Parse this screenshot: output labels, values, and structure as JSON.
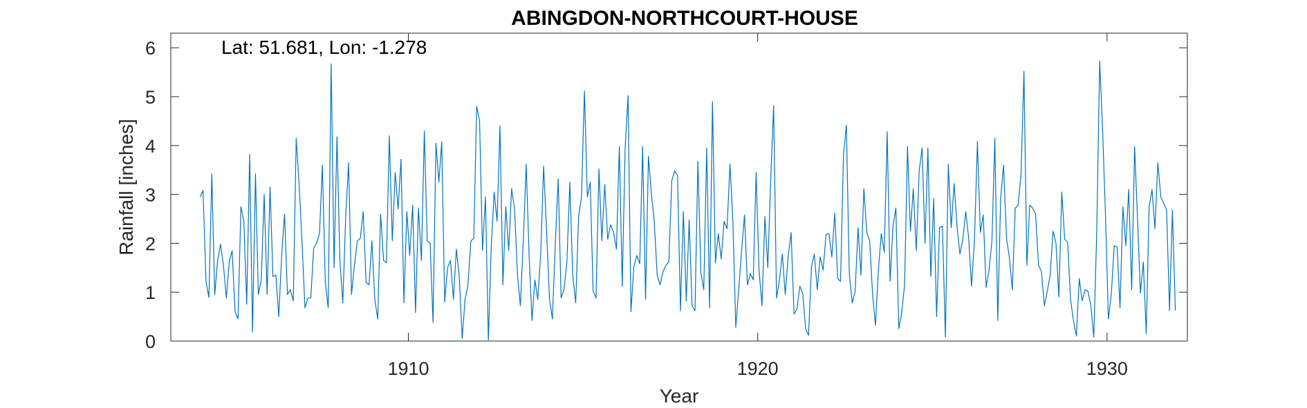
{
  "chart_data": {
    "type": "line",
    "title": "ABINGDON-NORTHCOURT-HOUSE",
    "xlabel": "Year",
    "ylabel": "Rainfall [inches]",
    "annotation": "Lat: 51.681, Lon: -1.278",
    "xlim": [
      1903.2,
      1932.3
    ],
    "ylim": [
      0,
      6.3
    ],
    "xticks": [
      1910,
      1920,
      1930
    ],
    "yticks": [
      0,
      1,
      2,
      3,
      4,
      5,
      6
    ],
    "grid": false,
    "line_color": "#0072BD",
    "series": [
      {
        "x_start": 1904.04,
        "x_step": 0.08333,
        "values": [
          2.95,
          3.08,
          1.22,
          0.89,
          3.42,
          0.95,
          1.65,
          1.98,
          1.55,
          0.88,
          1.62,
          1.85,
          0.6,
          0.45,
          2.75,
          2.45,
          0.75,
          3.82,
          0.18,
          3.42,
          0.95,
          1.25,
          3.0,
          0.95,
          3.15,
          1.32,
          1.35,
          0.5,
          1.75,
          2.6,
          0.95,
          1.05,
          0.82,
          4.15,
          3.2,
          2.0,
          0.68,
          0.88,
          0.88,
          1.9,
          2.0,
          2.2,
          3.6,
          1.2,
          0.68,
          5.67,
          1.5,
          4.18,
          1.65,
          0.78,
          2.55,
          3.65,
          0.95,
          1.55,
          2.05,
          2.1,
          2.65,
          1.2,
          1.15,
          2.05,
          0.85,
          0.45,
          2.6,
          1.65,
          1.6,
          4.2,
          2.05,
          3.45,
          2.7,
          3.72,
          0.78,
          2.65,
          1.75,
          2.78,
          0.58,
          2.72,
          1.65,
          4.3,
          2.05,
          2.0,
          0.38,
          4.05,
          3.25,
          4.08,
          0.8,
          1.5,
          1.65,
          0.85,
          1.88,
          1.32,
          0.05,
          0.85,
          1.15,
          2.05,
          2.1,
          4.8,
          4.5,
          1.85,
          2.95,
          0.02,
          1.95,
          3.05,
          2.45,
          4.4,
          1.15,
          2.75,
          1.85,
          3.12,
          2.7,
          1.35,
          0.72,
          2.05,
          3.62,
          1.75,
          0.42,
          1.25,
          0.85,
          1.78,
          3.58,
          2.25,
          0.85,
          0.45,
          2.0,
          3.32,
          0.88,
          1.05,
          1.62,
          3.25,
          1.35,
          0.78,
          2.55,
          2.95,
          5.12,
          2.95,
          3.25,
          1.02,
          0.88,
          3.52,
          2.05,
          3.2,
          2.08,
          2.38,
          2.22,
          1.88,
          3.98,
          1.12,
          3.95,
          5.02,
          0.6,
          1.52,
          1.75,
          1.58,
          3.98,
          0.85,
          3.78,
          3.02,
          2.45,
          1.35,
          1.15,
          1.42,
          1.55,
          1.62,
          3.28,
          3.48,
          3.38,
          0.62,
          2.65,
          0.82,
          2.48,
          0.72,
          0.62,
          3.68,
          1.4,
          1.05,
          3.95,
          0.68,
          4.9,
          1.6,
          2.2,
          1.68,
          2.45,
          2.3,
          3.62,
          2.45,
          0.28,
          1.05,
          1.85,
          2.58,
          1.15,
          1.38,
          1.25,
          3.45,
          1.45,
          0.72,
          2.55,
          1.5,
          3.3,
          4.82,
          0.88,
          1.25,
          1.78,
          0.95,
          1.72,
          2.22,
          0.55,
          0.65,
          1.12,
          0.98,
          0.25,
          0.12,
          1.52,
          1.78,
          1.05,
          1.72,
          1.45,
          2.18,
          2.2,
          1.72,
          2.62,
          1.28,
          1.22,
          3.8,
          4.42,
          1.38,
          0.78,
          1.02,
          2.32,
          1.35,
          3.12,
          2.22,
          2.05,
          0.95,
          0.32,
          1.45,
          2.2,
          1.82,
          4.28,
          1.22,
          2.35,
          2.72,
          0.25,
          0.58,
          1.15,
          3.98,
          2.25,
          3.12,
          1.85,
          3.48,
          3.95,
          2.0,
          3.95,
          1.32,
          2.92,
          0.5,
          2.32,
          2.35,
          0.08,
          3.62,
          2.32,
          3.22,
          2.35,
          1.78,
          2.08,
          2.65,
          2.12,
          1.12,
          2.05,
          4.08,
          2.22,
          2.58,
          1.1,
          1.45,
          2.05,
          4.15,
          0.42,
          2.92,
          3.6,
          2.1,
          1.7,
          1.05,
          2.72,
          2.78,
          3.42,
          5.52,
          1.55,
          2.78,
          2.72,
          2.6,
          1.55,
          1.42,
          0.72,
          1.02,
          1.35,
          2.25,
          2.0,
          0.9,
          3.05,
          2.08,
          2.02,
          0.85,
          0.42,
          0.1,
          1.28,
          0.82,
          1.05,
          1.02,
          0.72,
          0.08,
          2.2,
          5.73,
          4.32,
          2.58,
          0.45,
          0.95,
          1.95,
          1.92,
          0.68,
          2.75,
          1.95,
          3.1,
          1.05,
          3.98,
          2.5,
          0.98,
          1.62,
          0.15,
          2.75,
          3.1,
          2.3,
          3.65,
          2.95,
          2.82,
          2.68,
          0.62,
          2.68,
          0.62
        ]
      }
    ]
  }
}
